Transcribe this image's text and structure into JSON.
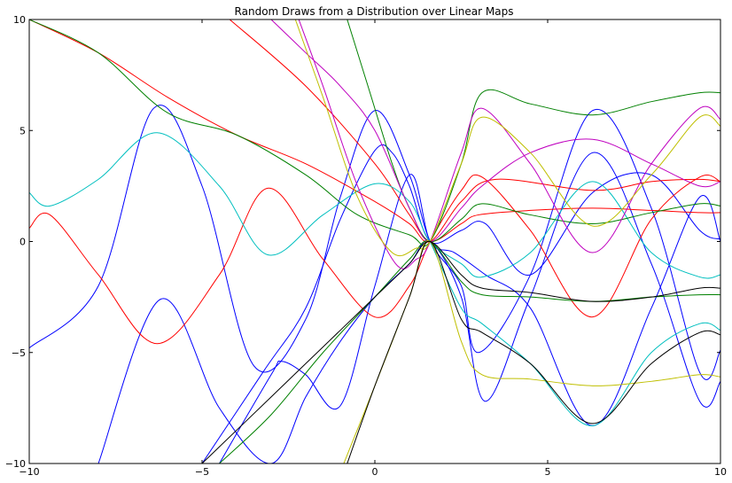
{
  "chart_data": {
    "type": "line",
    "title": "Random Draws from a Distribution over Linear Maps",
    "xlabel": "",
    "ylabel": "",
    "xlim": [
      -10,
      10
    ],
    "ylim": [
      -10,
      10
    ],
    "xticks": [
      -10,
      -5,
      0,
      5,
      10
    ],
    "yticks": [
      -10,
      -5,
      0,
      5,
      10
    ],
    "xtick_labels": [
      "−10",
      "−5",
      "0",
      "5",
      "10"
    ],
    "ytick_labels": [
      "−10",
      "−5",
      "0",
      "5",
      "10"
    ],
    "grid": false,
    "legend": "none",
    "series": [
      {
        "color": "#0000ff",
        "x": [
          -10,
          -8,
          -6.4,
          -5,
          -3.5,
          -2,
          -1,
          0,
          1,
          1.6,
          2.5,
          3,
          4.5,
          6.3,
          8,
          9.4,
          10
        ],
        "y": [
          -4.8,
          -2,
          6,
          2.5,
          -5.6,
          -3.5,
          2,
          5.9,
          3,
          0,
          -2,
          -5,
          -1.5,
          5.9,
          1.5,
          -5.9,
          -4.9
        ]
      },
      {
        "color": "#0000ff",
        "x": [
          -8,
          -6.2,
          -4.5,
          -3,
          -2,
          -1,
          0,
          1,
          1.6,
          2.5,
          3.2,
          4.5,
          6.3,
          8,
          9.4,
          10
        ],
        "y": [
          -10,
          -2.6,
          -7.5,
          -10,
          -7,
          -4.5,
          -2.5,
          -1,
          0,
          -2.5,
          -7.2,
          -2.5,
          4,
          -1,
          -7.2,
          -6.3
        ]
      },
      {
        "color": "#0000ff",
        "x": [
          -4.5,
          -3,
          -2.7,
          -2,
          -1,
          0,
          1,
          1.6,
          2.3,
          3.2,
          4.5,
          6.3,
          8,
          9.4,
          10
        ],
        "y": [
          -10,
          -6,
          -5.4,
          -6,
          -7.4,
          -2,
          3,
          0,
          -0.5,
          -1.5,
          -3,
          -8.3,
          -3,
          2,
          0
        ]
      },
      {
        "color": "#0000ff",
        "x": [
          -5,
          -3.2,
          -2,
          -1,
          0,
          0.5,
          1,
          1.6,
          2.5,
          3.2,
          4.5,
          6.3,
          8,
          9.4,
          10
        ],
        "y": [
          -10,
          -5.8,
          -3,
          1,
          4.1,
          4,
          2.5,
          0,
          0.5,
          0.8,
          -1.5,
          2.2,
          3,
          0.5,
          0.1
        ]
      },
      {
        "color": "#ff0000",
        "x": [
          -10,
          -8,
          -6,
          -4,
          -2,
          0,
          1,
          1.6,
          2.5,
          3.5,
          6.3,
          8,
          9.4,
          10
        ],
        "y": [
          10,
          8.5,
          6.5,
          4.8,
          3.5,
          1.8,
          0.8,
          0,
          1.8,
          2.8,
          2.3,
          2.7,
          2.8,
          2.7
        ]
      },
      {
        "color": "#ff0000",
        "x": [
          -10,
          -9.4,
          -8,
          -6.3,
          -4.5,
          -3.1,
          -1.5,
          0,
          1,
          1.6,
          2.5,
          3.1,
          4.5,
          6.3,
          8,
          9.4,
          10
        ],
        "y": [
          0.6,
          1.2,
          -1.5,
          -4.6,
          -1.5,
          2.4,
          -0.8,
          -3.4,
          -2,
          0,
          2.3,
          2.9,
          0.5,
          -3.4,
          1,
          2.9,
          2.7
        ]
      },
      {
        "color": "#ff0000",
        "x": [
          -4.2,
          -2,
          0,
          1,
          1.6,
          2.5,
          3,
          4.5,
          6.3,
          8,
          9.4,
          10
        ],
        "y": [
          10,
          7,
          3.5,
          1.2,
          0,
          0.8,
          1.2,
          1.4,
          1.5,
          1.4,
          1.3,
          1.3
        ]
      },
      {
        "color": "#00bfbf",
        "x": [
          -10,
          -9.4,
          -8,
          -6.3,
          -4.5,
          -3.1,
          -1.5,
          0,
          1,
          1.6,
          2.5,
          3.1,
          4.5,
          6.3,
          8,
          9.4,
          10
        ],
        "y": [
          2.2,
          1.6,
          2.8,
          4.9,
          2.5,
          -0.6,
          1.2,
          2.6,
          1.8,
          0,
          -1,
          -1.6,
          -0.5,
          2.7,
          -0.5,
          -1.6,
          -1.5
        ]
      },
      {
        "color": "#00bfbf",
        "x": [
          1.6,
          2.5,
          3.1,
          4.5,
          6.3,
          8,
          9.4,
          10
        ],
        "y": [
          0,
          -3,
          -3.7,
          -5.5,
          -8.3,
          -5,
          -3.7,
          -4
        ]
      },
      {
        "color": "#008000",
        "x": [
          -10,
          -8,
          -6,
          -4,
          -2,
          -0.5,
          1,
          1.6,
          2.5,
          3.1,
          4.5,
          6.3,
          8,
          9.4,
          10
        ],
        "y": [
          10,
          8.5,
          5.8,
          4.8,
          3,
          1.2,
          0.3,
          0,
          3.5,
          6.7,
          6.2,
          5.7,
          6.3,
          6.7,
          6.7
        ]
      },
      {
        "color": "#008000",
        "x": [
          -0.8,
          -0.2,
          0.5,
          1,
          1.6,
          2.5,
          3.1,
          4.5,
          6.3,
          8,
          9.4,
          10
        ],
        "y": [
          10,
          7,
          3.5,
          1.5,
          0,
          1,
          1.7,
          1.2,
          0.8,
          1.3,
          1.7,
          1.6
        ]
      },
      {
        "color": "#008000",
        "x": [
          -4.5,
          -3,
          -1.5,
          0,
          1,
          1.6,
          2.5,
          3.1,
          4.5,
          6.3,
          8,
          9.4,
          10
        ],
        "y": [
          -10,
          -7.8,
          -5,
          -2.5,
          -0.8,
          0,
          -1.8,
          -2.4,
          -2.5,
          -2.7,
          -2.5,
          -2.4,
          -2.4
        ]
      },
      {
        "color": "#bf00bf",
        "x": [
          -3,
          -2,
          -1,
          0,
          1,
          1.6,
          2.5,
          3.1,
          4.5,
          6.3,
          8,
          9.4,
          10
        ],
        "y": [
          10,
          8.5,
          7,
          5,
          1.5,
          0,
          1.5,
          2.5,
          4,
          4.6,
          3.5,
          2.5,
          2.7
        ]
      },
      {
        "color": "#bf00bf",
        "x": [
          -2.2,
          -1.5,
          -0.5,
          0.6,
          1.2,
          1.6,
          2.5,
          3.1,
          4.5,
          6.3,
          8,
          9.4,
          10
        ],
        "y": [
          10,
          7,
          2.5,
          -1,
          -0.8,
          0,
          4,
          6,
          3.5,
          -0.5,
          3.5,
          6,
          5.5
        ]
      },
      {
        "color": "#bfbf00",
        "x": [
          -2.3,
          -1.5,
          -0.5,
          0.5,
          1.2,
          1.6,
          2.5,
          3.1,
          4.5,
          6.3,
          8,
          9.4,
          10
        ],
        "y": [
          10,
          6.5,
          2,
          -0.5,
          -0.3,
          0,
          3.5,
          5.6,
          4,
          0.7,
          3,
          5.6,
          5.2
        ]
      },
      {
        "color": "#bfbf00",
        "x": [
          -0.9,
          0,
          1,
          1.6,
          2.5,
          3.1,
          4.5,
          6.3,
          8,
          9.4,
          10
        ],
        "y": [
          -10,
          -6.5,
          -2.5,
          0,
          -4.5,
          -6,
          -6.2,
          -6.5,
          -6.3,
          -6,
          -6.1
        ]
      },
      {
        "color": "#000000",
        "x": [
          -5,
          -3,
          -1,
          0,
          1,
          1.6,
          2.5,
          3.1,
          4.5,
          6.3,
          8,
          9.4,
          10
        ],
        "y": [
          -10,
          -7,
          -4,
          -2.5,
          -1,
          0,
          -1.5,
          -2.1,
          -2.3,
          -2.7,
          -2.5,
          -2.1,
          -2.1
        ]
      },
      {
        "color": "#000000",
        "x": [
          -0.8,
          0,
          1,
          1.6,
          2.5,
          3.1,
          4.5,
          6.3,
          8,
          9.4,
          10
        ],
        "y": [
          -10,
          -6.5,
          -2.5,
          0,
          -3.5,
          -4.1,
          -5.5,
          -8.2,
          -5.5,
          -4.1,
          -4.2
        ]
      }
    ]
  }
}
